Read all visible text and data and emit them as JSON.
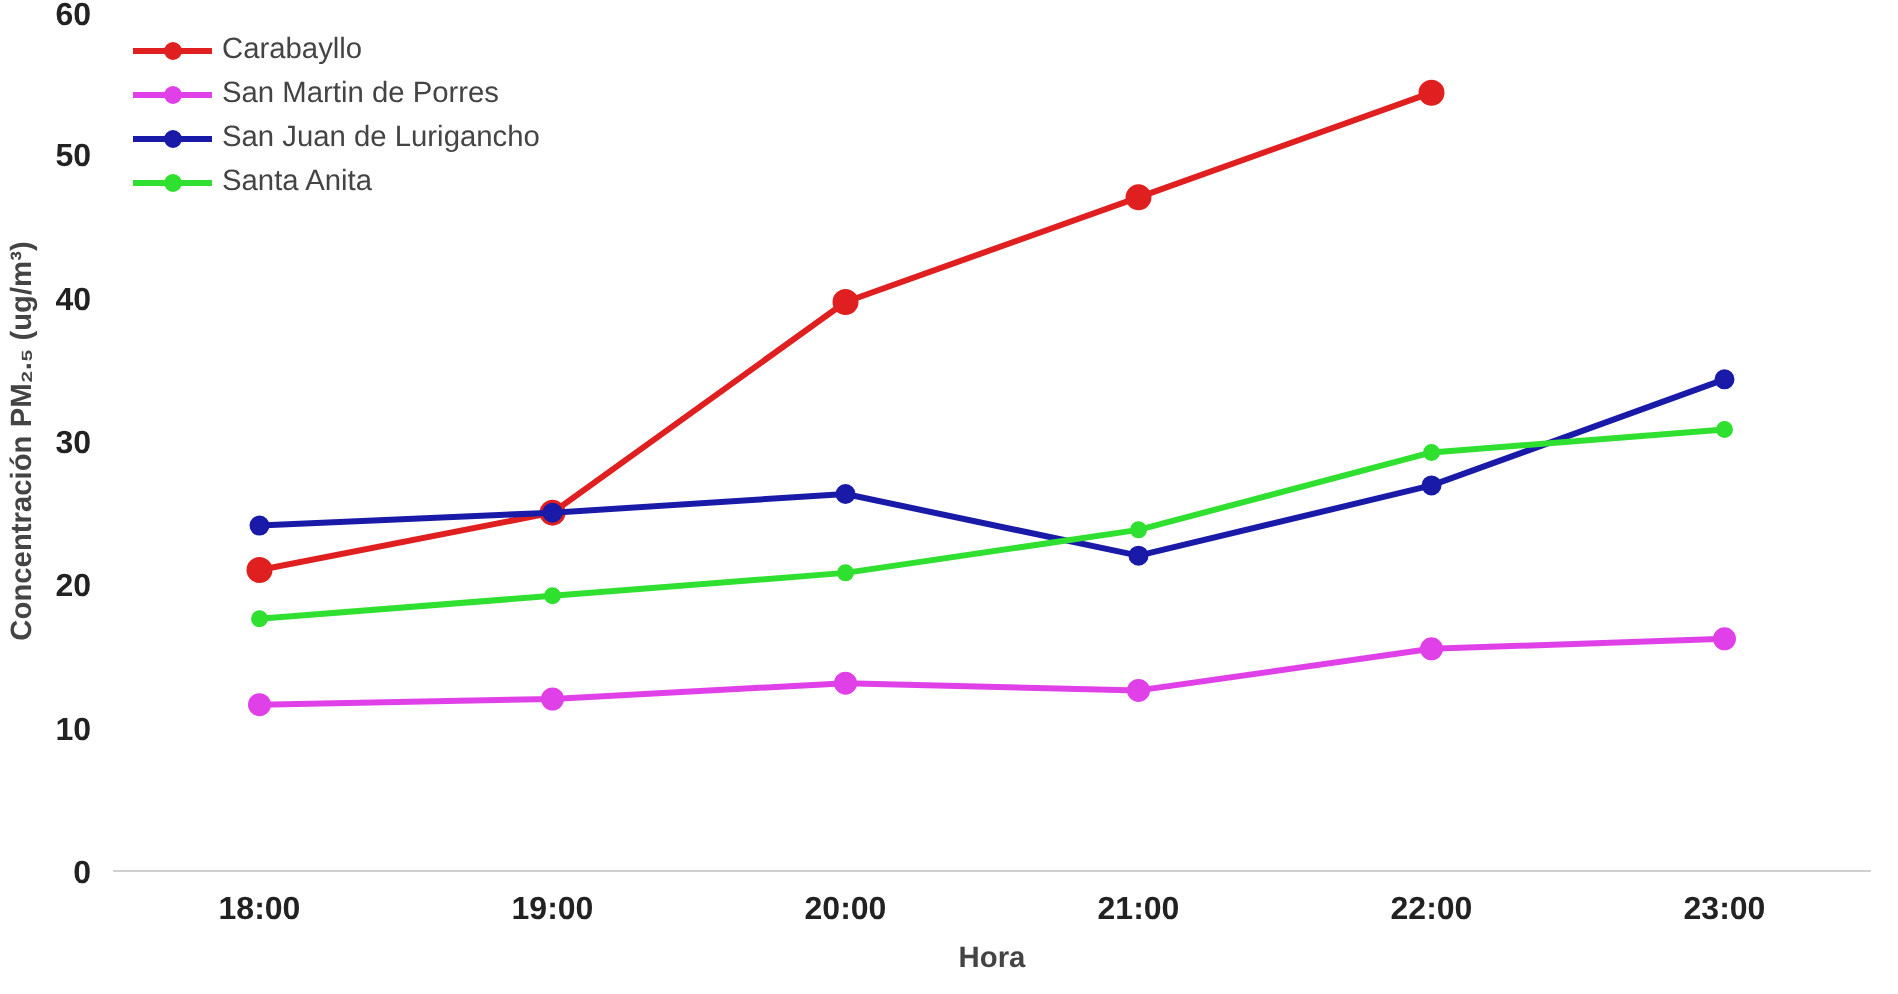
{
  "chart_data": {
    "type": "line",
    "xlabel": "Hora",
    "ylabel": "Concentración PM₂.₅ (ug/m³)",
    "categories": [
      "18:00",
      "19:00",
      "20:00",
      "21:00",
      "22:00",
      "23:00"
    ],
    "ylim": [
      0,
      60
    ],
    "yticks": [
      0,
      10,
      20,
      30,
      40,
      50,
      60
    ],
    "grid": false,
    "legend": "top left",
    "marker": "circle",
    "line_style": "solid",
    "series": [
      {
        "name": "Carabayllo",
        "color": "#e02020",
        "values": [
          21,
          25,
          39.7,
          47,
          54.3,
          null
        ]
      },
      {
        "name": "San Martin de Porres",
        "color": "#e040e8",
        "values": [
          11.6,
          12,
          13.1,
          12.6,
          15.5,
          16.2
        ]
      },
      {
        "name": "San Juan de Lurigancho",
        "color": "#1a1aa8",
        "values": [
          24.1,
          25,
          26.3,
          22,
          26.9,
          34.3
        ]
      },
      {
        "name": "Santa Anita",
        "color": "#30e030",
        "values": [
          17.6,
          19.2,
          20.8,
          23.8,
          29.2,
          30.8
        ]
      }
    ]
  }
}
